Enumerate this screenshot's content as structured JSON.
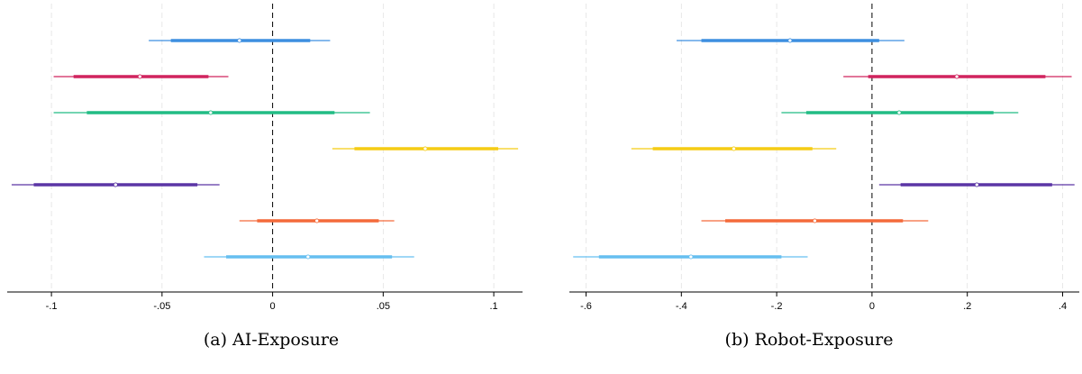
{
  "chart_data": [
    {
      "type": "coefficient-plot",
      "caption": "(a) AI-Exposure",
      "xlim": [
        -0.12,
        0.113
      ],
      "xticks": [
        -0.1,
        -0.05,
        0,
        0.05,
        0.1
      ],
      "xtick_labels": [
        "-.1",
        "-.05",
        "0",
        ".05",
        ".1"
      ],
      "reference_line": 0,
      "grid": "vertical dashed at ticks",
      "series": [
        {
          "color": "#3D8FE0",
          "estimate": -0.015,
          "ci90": [
            -0.046,
            0.017
          ],
          "ci95": [
            -0.056,
            0.026
          ]
        },
        {
          "color": "#D0245E",
          "estimate": -0.06,
          "ci90": [
            -0.09,
            -0.029
          ],
          "ci95": [
            -0.099,
            -0.02
          ]
        },
        {
          "color": "#21BC84",
          "estimate": -0.028,
          "ci90": [
            -0.084,
            0.028
          ],
          "ci95": [
            -0.099,
            0.044
          ]
        },
        {
          "color": "#F5CC14",
          "estimate": 0.069,
          "ci90": [
            0.037,
            0.102
          ],
          "ci95": [
            0.027,
            0.111
          ]
        },
        {
          "color": "#5B35A5",
          "estimate": -0.071,
          "ci90": [
            -0.108,
            -0.034
          ],
          "ci95": [
            -0.118,
            -0.024
          ]
        },
        {
          "color": "#F46A3A",
          "estimate": 0.02,
          "ci90": [
            -0.007,
            0.048
          ],
          "ci95": [
            -0.015,
            0.055
          ]
        },
        {
          "color": "#66BFF0",
          "estimate": 0.016,
          "ci90": [
            -0.021,
            0.054
          ],
          "ci95": [
            -0.031,
            0.064
          ]
        }
      ]
    },
    {
      "type": "coefficient-plot",
      "caption": "(b) Robot-Exposure",
      "xlim": [
        -0.635,
        0.435
      ],
      "xticks": [
        -0.6,
        -0.4,
        -0.2,
        0,
        0.2,
        0.4
      ],
      "xtick_labels": [
        "-.6",
        "-.4",
        "-.2",
        "0",
        ".2",
        ".4"
      ],
      "reference_line": 0,
      "grid": "vertical dashed at ticks",
      "series": [
        {
          "color": "#3D8FE0",
          "estimate": -0.172,
          "ci90": [
            -0.358,
            0.015
          ],
          "ci95": [
            -0.41,
            0.068
          ]
        },
        {
          "color": "#D0245E",
          "estimate": 0.178,
          "ci90": [
            -0.008,
            0.364
          ],
          "ci95": [
            -0.06,
            0.419
          ]
        },
        {
          "color": "#21BC84",
          "estimate": 0.057,
          "ci90": [
            -0.138,
            0.255
          ],
          "ci95": [
            -0.19,
            0.307
          ]
        },
        {
          "color": "#F5CC14",
          "estimate": -0.29,
          "ci90": [
            -0.46,
            -0.125
          ],
          "ci95": [
            -0.505,
            -0.075
          ]
        },
        {
          "color": "#5B35A5",
          "estimate": 0.22,
          "ci90": [
            0.06,
            0.378
          ],
          "ci95": [
            0.015,
            0.425
          ]
        },
        {
          "color": "#F46A3A",
          "estimate": -0.12,
          "ci90": [
            -0.308,
            0.065
          ],
          "ci95": [
            -0.358,
            0.118
          ]
        },
        {
          "color": "#66BFF0",
          "estimate": -0.38,
          "ci90": [
            -0.573,
            -0.19
          ],
          "ci95": [
            -0.627,
            -0.135
          ]
        }
      ]
    }
  ]
}
